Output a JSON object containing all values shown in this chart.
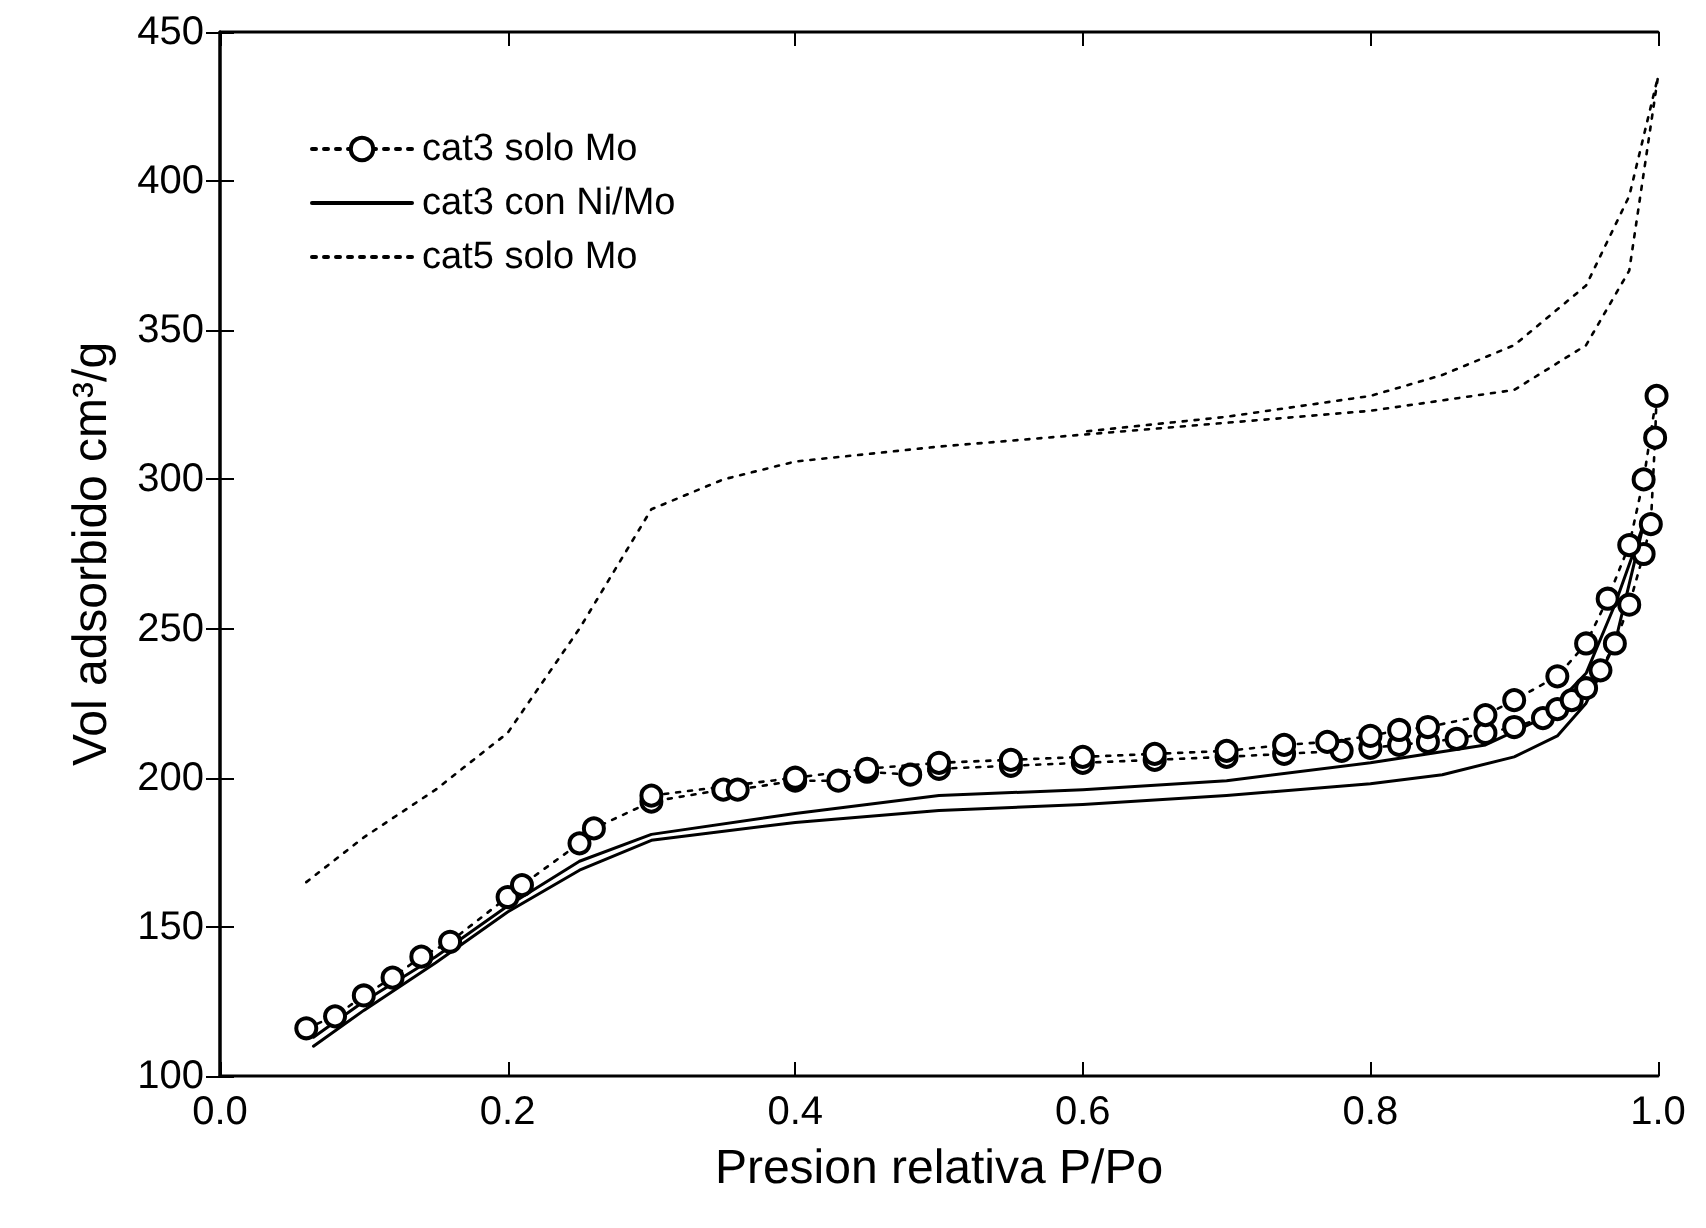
{
  "chart_data": {
    "type": "line",
    "xlabel": "Presion relativa P/Po",
    "ylabel": "Vol adsorbido cm³/g",
    "xlim": [
      0,
      1
    ],
    "xticks": [
      {
        "value": 0,
        "label": "0.0"
      },
      {
        "value": 0.2,
        "label": "0.2"
      },
      {
        "value": 0.4,
        "label": "0.4"
      },
      {
        "value": 0.6,
        "label": "0.6"
      },
      {
        "value": 0.8,
        "label": "0.8"
      },
      {
        "value": 1,
        "label": "1.0"
      }
    ],
    "ylim": [
      100,
      450
    ],
    "yticks": [
      100,
      150,
      200,
      250,
      300,
      350,
      400,
      450
    ],
    "grid": false,
    "legend": "top left",
    "series": [
      {
        "name": "cat3 solo Mo",
        "color": "#000000",
        "marker": "circle",
        "line_style": "dotted",
        "x": [
          0.06,
          0.08,
          0.1,
          0.12,
          0.14,
          0.16,
          0.2,
          0.21,
          0.25,
          0.26,
          0.3,
          0.35,
          0.36,
          0.4,
          0.43,
          0.45,
          0.48,
          0.5,
          0.55,
          0.6,
          0.65,
          0.7,
          0.74,
          0.78,
          0.8,
          0.82,
          0.84,
          0.86,
          0.88,
          0.9,
          0.92,
          0.93,
          0.94,
          0.95,
          0.96,
          0.97,
          0.98,
          0.99,
          0.995,
          0.998,
          0.999,
          0.99,
          0.98,
          0.965,
          0.95,
          0.93,
          0.9,
          0.88,
          0.84,
          0.82,
          0.8,
          0.77,
          0.74,
          0.7,
          0.65,
          0.6,
          0.55,
          0.5,
          0.45,
          0.4,
          0.3
        ],
        "values": [
          116,
          120,
          127,
          133,
          140,
          145,
          160,
          164,
          178,
          183,
          192,
          196,
          196,
          199,
          199,
          202,
          201,
          203,
          204,
          205,
          206,
          207,
          208,
          209,
          210,
          211,
          212,
          213,
          215,
          217,
          220,
          223,
          226,
          230,
          236,
          245,
          258,
          275,
          285,
          314,
          328,
          300,
          278,
          260,
          245,
          234,
          226,
          221,
          217,
          216,
          214,
          212,
          211,
          209,
          208,
          207,
          206,
          205,
          203,
          200,
          194
        ]
      },
      {
        "name": "cat3 con Ni/Mo",
        "color": "#000000",
        "marker": "none",
        "line_style": "solid",
        "x": [
          0.065,
          0.1,
          0.15,
          0.2,
          0.25,
          0.3,
          0.4,
          0.5,
          0.6,
          0.7,
          0.8,
          0.85,
          0.9,
          0.93,
          0.95,
          0.97,
          0.98,
          0.99,
          0.97,
          0.95,
          0.92,
          0.88,
          0.8,
          0.7,
          0.6,
          0.5,
          0.4,
          0.3,
          0.25,
          0.2,
          0.15,
          0.1,
          0.065
        ],
        "values": [
          110,
          122,
          138,
          155,
          169,
          179,
          185,
          189,
          191,
          194,
          198,
          201,
          207,
          214,
          225,
          245,
          265,
          285,
          258,
          235,
          220,
          211,
          205,
          199,
          196,
          194,
          188,
          181,
          172,
          157,
          140,
          125,
          113
        ]
      },
      {
        "name": "cat5 solo Mo",
        "color": "#000000",
        "marker": "none",
        "line_style": "dotted",
        "x": [
          0.06,
          0.1,
          0.15,
          0.2,
          0.25,
          0.3,
          0.35,
          0.4,
          0.5,
          0.6,
          0.7,
          0.8,
          0.9,
          0.95,
          0.98,
          1,
          0.98,
          0.95,
          0.9,
          0.85,
          0.8,
          0.7,
          0.6
        ],
        "values": [
          165,
          180,
          196,
          215,
          250,
          290,
          300,
          306,
          311,
          315,
          319,
          323,
          330,
          345,
          370,
          435,
          395,
          365,
          345,
          335,
          328,
          321,
          316
        ]
      }
    ]
  }
}
